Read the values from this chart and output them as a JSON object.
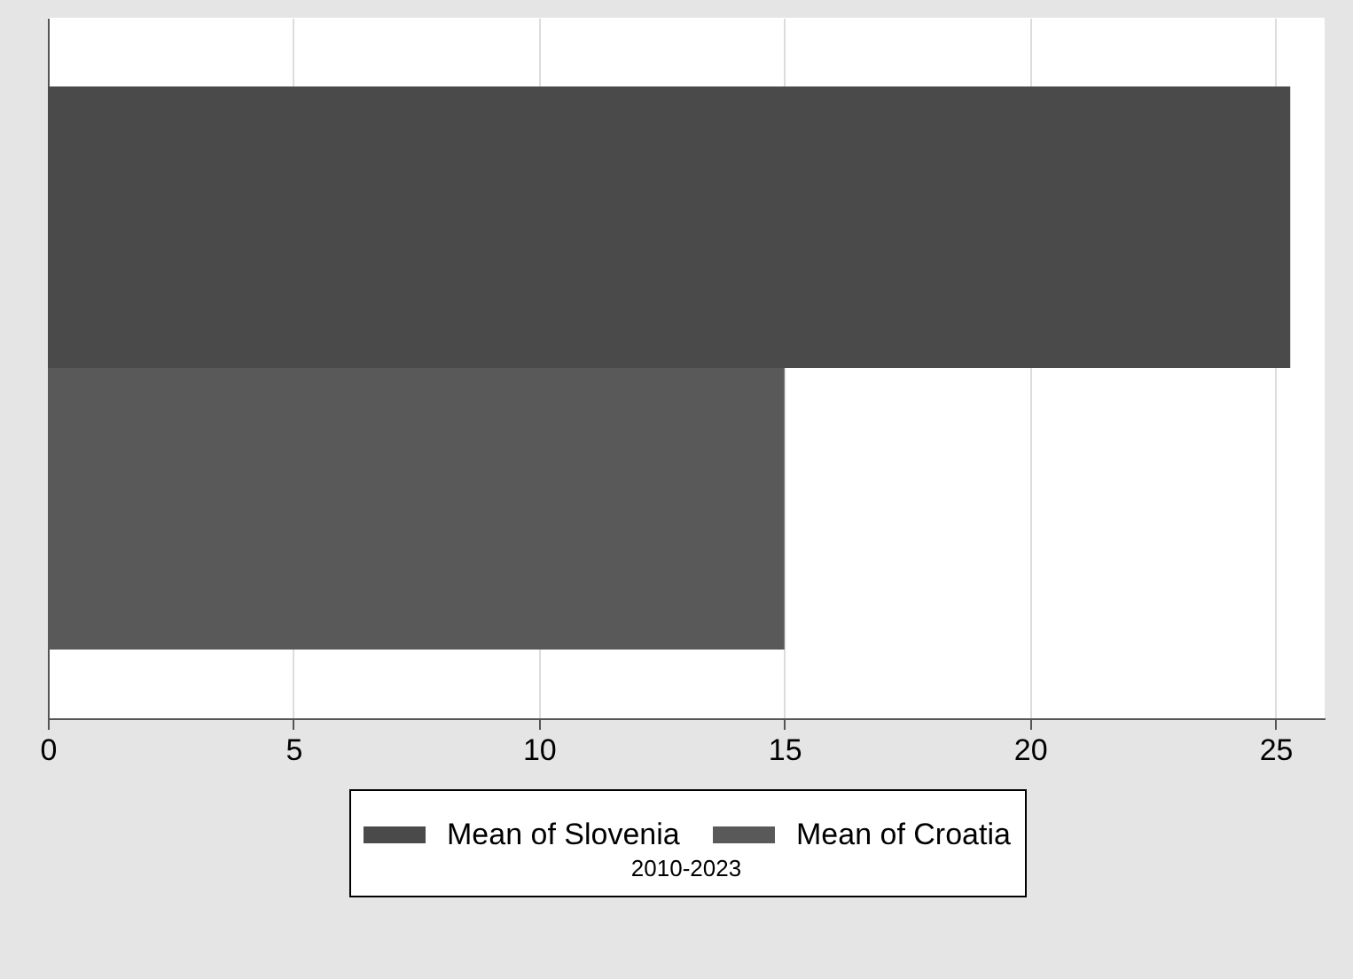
{
  "chart_data": {
    "type": "bar",
    "orientation": "horizontal",
    "categories": [
      null
    ],
    "series": [
      {
        "name": "Mean of Slovenia",
        "color": "#4a4a4a",
        "values": [
          25.3
        ]
      },
      {
        "name": "Mean of Croatia",
        "color": "#595959",
        "values": [
          15.0
        ]
      }
    ],
    "xlim": [
      0,
      26
    ],
    "xticks": [
      0,
      5,
      10,
      15,
      20,
      25
    ],
    "grid": "x",
    "legend": "bottom",
    "legend_title": "2010-2023"
  }
}
